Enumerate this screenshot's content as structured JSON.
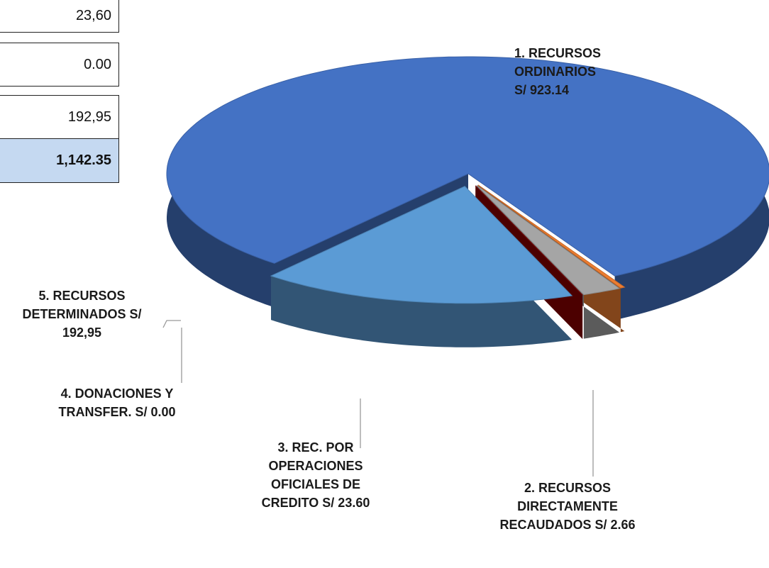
{
  "table": {
    "rows": [
      "23,60",
      "0.00",
      "192,95",
      "1,142.35"
    ]
  },
  "chart_data": {
    "type": "pie3d",
    "labels": [
      "1. RECURSOS ORDINARIOS S/ 923.14",
      "2. RECURSOS DIRECTAMENTE RECAUDADOS S/ 2.66",
      "3. REC. POR OPERACIONES OFICIALES DE CREDITO S/ 23.60",
      "4. DONACIONES Y TRANSFER. S/ 0.00",
      "5. RECURSOS DETERMINADOS S/ 192,95"
    ],
    "values": [
      923.14,
      2.66,
      23.6,
      0.0,
      192.95
    ],
    "colors": [
      "#4472c4",
      "#ed7d31",
      "#a5a5a5",
      "#8b0000",
      "#5b9bd5"
    ]
  }
}
